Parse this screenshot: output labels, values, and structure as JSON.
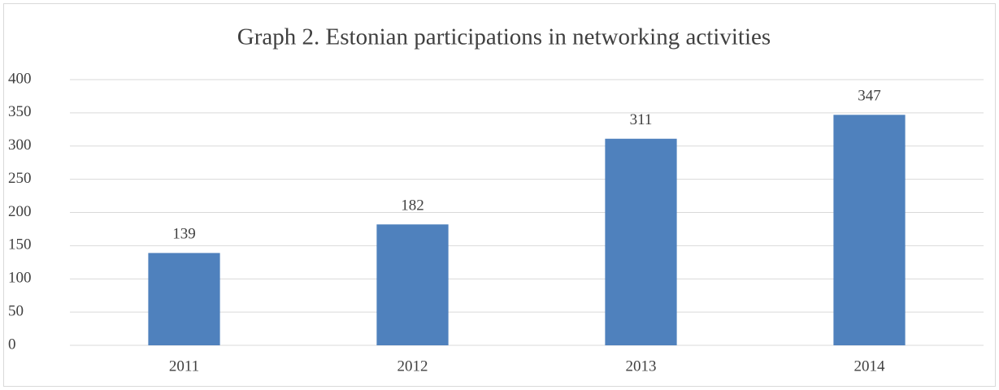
{
  "chart_data": {
    "type": "bar",
    "title": "Graph 2. Estonian participations in networking activities",
    "categories": [
      "2011",
      "2012",
      "2013",
      "2014"
    ],
    "values": [
      139,
      182,
      311,
      347
    ],
    "color": "#4f81bd",
    "ylim": [
      0,
      400
    ],
    "yticks": [
      0,
      50,
      100,
      150,
      200,
      250,
      300,
      350,
      400
    ],
    "grid": true
  }
}
